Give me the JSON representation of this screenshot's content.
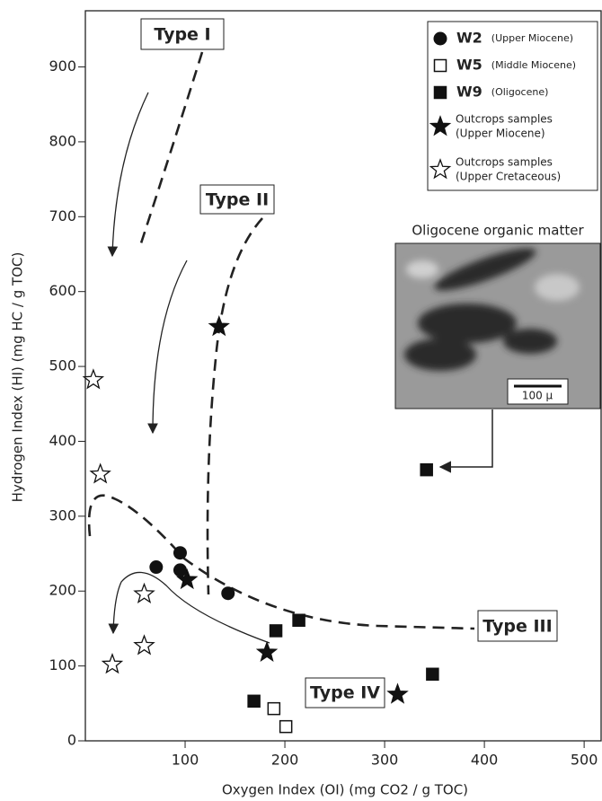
{
  "chart_data": {
    "type": "scatter",
    "xlabel": "Oxygen Index (OI) (mg CO2 / g TOC)",
    "ylabel": "Hydrogen Index (HI) (mg HC / g TOC)",
    "xlim": [
      0,
      517
    ],
    "ylim": [
      0,
      975
    ],
    "xticks": [
      100,
      200,
      300,
      400,
      500
    ],
    "yticks": [
      0,
      100,
      200,
      300,
      400,
      500,
      600,
      700,
      800,
      900
    ],
    "series": [
      {
        "name": "W2",
        "description": "(Upper Miocene)",
        "marker": "circle",
        "color": "#111111",
        "x": [
          71,
          95,
          95,
          143
        ],
        "values": [
          232,
          251,
          228,
          197
        ]
      },
      {
        "name": "W5",
        "description": "(Middle Miocene)",
        "marker": "square-open",
        "color": "#111111",
        "x": [
          189,
          201
        ],
        "values": [
          43,
          19
        ]
      },
      {
        "name": "W9",
        "description": "(Oligocene)",
        "marker": "square",
        "color": "#111111",
        "x": [
          169,
          191,
          214,
          342,
          348
        ],
        "values": [
          53,
          147,
          161,
          362,
          89
        ]
      },
      {
        "name": "Outcrops samples",
        "description": "(Upper Miocene)",
        "marker": "star",
        "color": "#111111",
        "x": [
          134,
          102,
          182,
          313
        ],
        "values": [
          553,
          215,
          118,
          62
        ]
      },
      {
        "name": "Outcrops samples",
        "description": "(Upper Cretaceous)",
        "marker": "star-open",
        "color": "#111111",
        "x": [
          8,
          15,
          59,
          59,
          27
        ],
        "values": [
          482,
          356,
          196,
          127,
          102
        ]
      }
    ],
    "annotations": [
      "Type I",
      "Type II",
      "Type III",
      "Type IV"
    ],
    "inset": {
      "title": "Oligocene organic matter",
      "scale": "100 μ"
    }
  }
}
